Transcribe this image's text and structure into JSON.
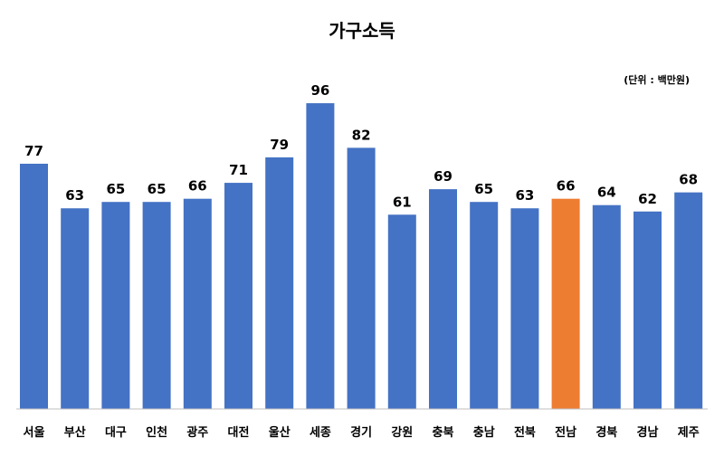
{
  "chart_data": {
    "type": "bar",
    "title": "가구소득",
    "unit_note": "(단위 : 백만원)",
    "categories": [
      "서울",
      "부산",
      "대구",
      "인천",
      "광주",
      "대전",
      "울산",
      "세종",
      "경기",
      "강원",
      "충북",
      "충남",
      "전북",
      "전남",
      "경북",
      "경남",
      "제주"
    ],
    "values": [
      77,
      63,
      65,
      65,
      66,
      71,
      79,
      96,
      82,
      61,
      69,
      65,
      63,
      66,
      64,
      62,
      68
    ],
    "highlight_category": "전남",
    "colors": {
      "bar": "#4472C4",
      "highlight": "#ED7D31",
      "axis": "#BFBFBF"
    },
    "ylim": [
      0,
      100
    ],
    "grid": false,
    "legend": "none"
  }
}
